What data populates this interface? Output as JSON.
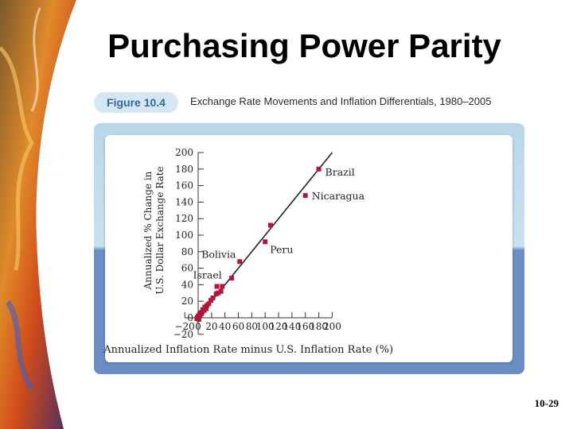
{
  "slide": {
    "title": "Purchasing Power Parity",
    "page_number": "10-29"
  },
  "figure": {
    "label": "Figure 10.4",
    "caption": "Exchange Rate Movements and Inflation Differentials, 1980–2005"
  },
  "colors": {
    "marker": "#b0183a",
    "band_light": "#c6dff0",
    "band_dark": "#6a8ec4",
    "pill": "#d5e7f3",
    "pill_text": "#2f6a9a"
  },
  "chart_data": {
    "type": "scatter",
    "title": "Exchange Rate Movements and Inflation Differentials, 1980–2005",
    "xlabel": "Annualized Inflation Rate minus U.S. Inflation Rate (%)",
    "ylabel_lines": [
      "Annualized % Change in",
      "U.S. Dollar Exchange Rate"
    ],
    "xlim": [
      -20,
      200
    ],
    "ylim": [
      -20,
      200
    ],
    "x_ticks": [
      -20,
      0,
      20,
      40,
      60,
      80,
      100,
      120,
      140,
      160,
      180,
      200
    ],
    "y_ticks": [
      -20,
      0,
      20,
      40,
      60,
      80,
      100,
      120,
      140,
      160,
      180,
      200
    ],
    "grid": false,
    "fit_line": {
      "from": [
        -3,
        -3
      ],
      "to": [
        200,
        200
      ]
    },
    "labeled_points": [
      {
        "label": "Brazil",
        "x": 180,
        "y": 180
      },
      {
        "label": "Nicaragua",
        "x": 160,
        "y": 148
      },
      {
        "label": "Peru",
        "x": 100,
        "y": 92
      },
      {
        "label": "Bolivia",
        "x": 62,
        "y": 68
      },
      {
        "label": "Israel",
        "x": 28,
        "y": 38
      }
    ],
    "points": [
      {
        "x": 108,
        "y": 112
      },
      {
        "x": 50,
        "y": 48
      },
      {
        "x": 36,
        "y": 38
      },
      {
        "x": 34,
        "y": 32
      },
      {
        "x": 30,
        "y": 30
      },
      {
        "x": 27,
        "y": 29
      },
      {
        "x": 22,
        "y": 24
      },
      {
        "x": 19,
        "y": 21
      },
      {
        "x": 16,
        "y": 17
      },
      {
        "x": 13,
        "y": 15
      },
      {
        "x": 12,
        "y": 11
      },
      {
        "x": 10,
        "y": 13
      },
      {
        "x": 9,
        "y": 9
      },
      {
        "x": 7,
        "y": 10
      },
      {
        "x": 6,
        "y": 7
      },
      {
        "x": 5,
        "y": 5
      },
      {
        "x": 4,
        "y": 6
      },
      {
        "x": 3,
        "y": 3
      },
      {
        "x": 2,
        "y": 4
      },
      {
        "x": 1,
        "y": 1
      },
      {
        "x": 0,
        "y": 2
      },
      {
        "x": -1,
        "y": 0
      },
      {
        "x": -2,
        "y": -1
      },
      {
        "x": 1,
        "y": -2
      }
    ]
  }
}
